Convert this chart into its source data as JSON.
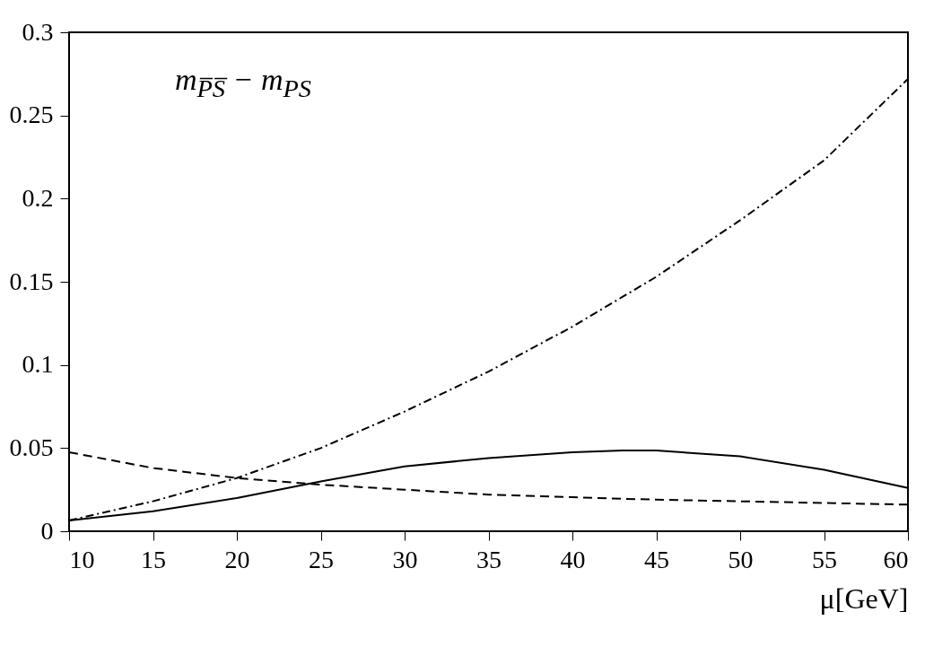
{
  "chart_data": {
    "type": "line",
    "xlabel": "μ[GeV]",
    "annotations": [
      "m$_{P̅S̅}$ − m$_{PS}$"
    ],
    "x": [
      10,
      15,
      20,
      25,
      30,
      35,
      40,
      43,
      45,
      50,
      55,
      60
    ],
    "series": [
      {
        "color": "#000000",
        "line_style": "solid",
        "values": [
          0.0065,
          0.012,
          0.02,
          0.03,
          0.039,
          0.044,
          0.0475,
          0.0485,
          0.0485,
          0.045,
          0.037,
          0.026
        ]
      },
      {
        "color": "#000000",
        "line_style": "dashed",
        "values": [
          0.0475,
          0.038,
          0.032,
          0.028,
          0.025,
          0.022,
          0.0205,
          0.0195,
          0.019,
          0.018,
          0.017,
          0.016
        ]
      },
      {
        "color": "#000000",
        "line_style": "dashdot",
        "values": [
          0.0065,
          0.018,
          0.032,
          0.05,
          0.072,
          0.096,
          0.123,
          0.141,
          0.153,
          0.187,
          0.223,
          0.272
        ]
      }
    ],
    "xlim": [
      10,
      60
    ],
    "xticks": [
      10,
      15,
      20,
      25,
      30,
      35,
      40,
      45,
      50,
      55,
      60
    ],
    "ylim": [
      0,
      0.3
    ],
    "yticks": [
      0,
      0.05,
      0.1,
      0.15,
      0.2,
      0.25,
      0.3
    ],
    "grid": false,
    "marker": "none"
  }
}
